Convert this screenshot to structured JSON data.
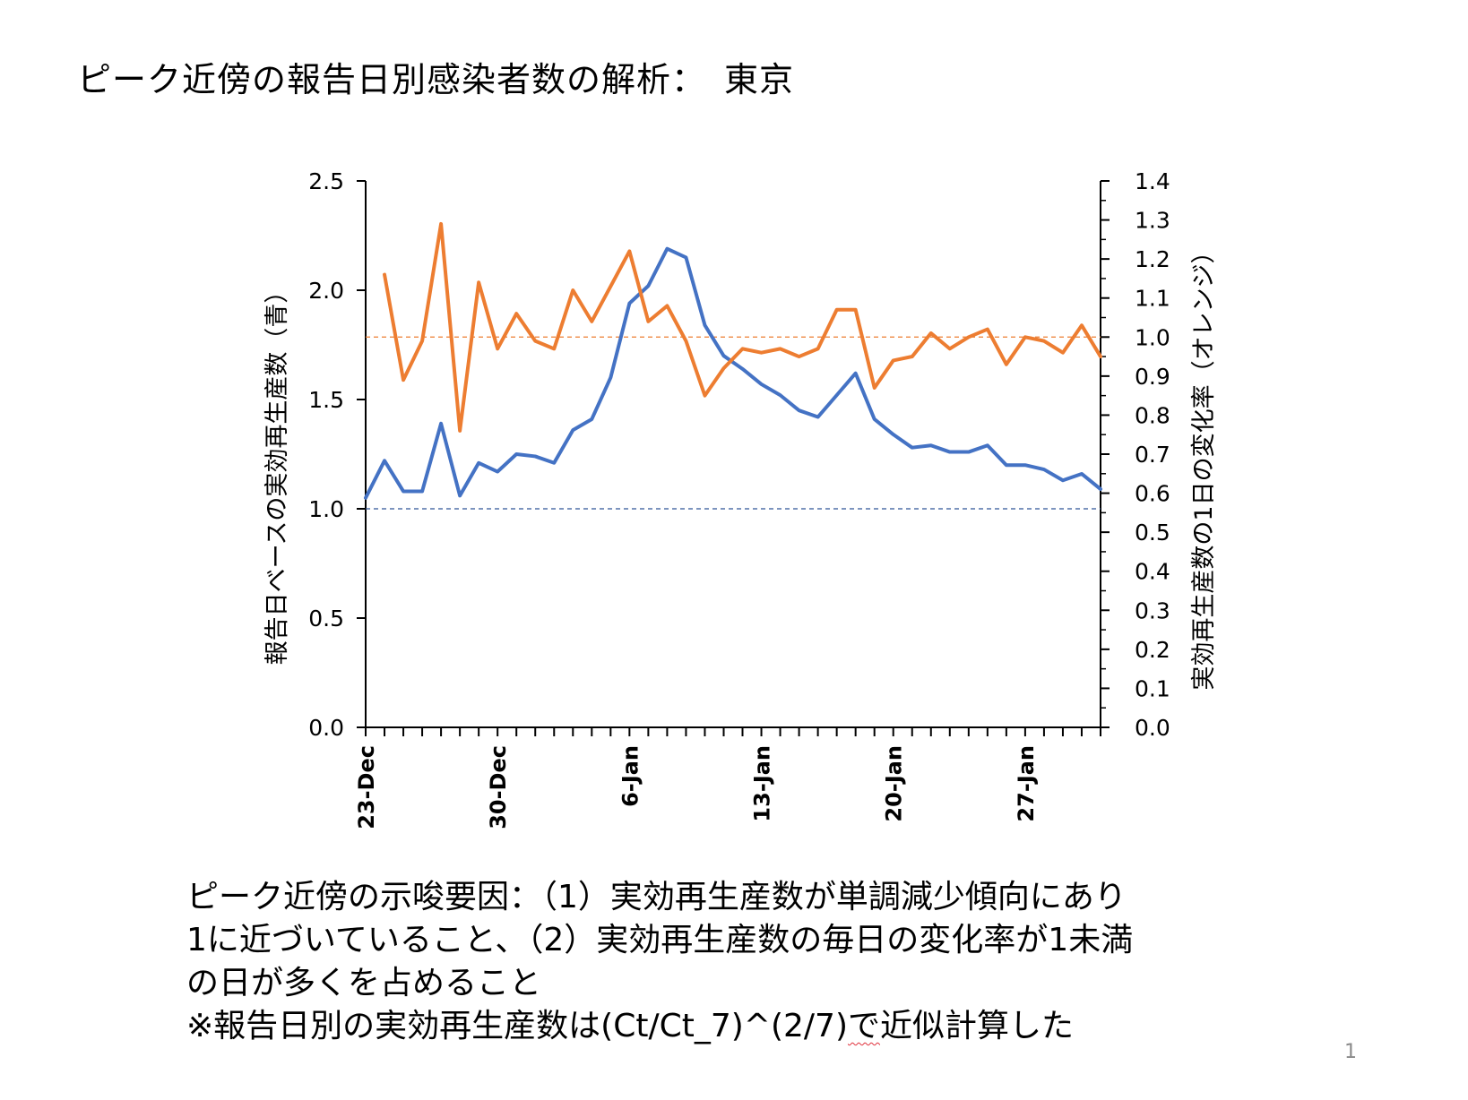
{
  "slide": {
    "title": "ピーク近傍の報告日別感染者数の解析：　東京",
    "notes": [
      "ピーク近傍の示唆要因：（1）実効再生産数が単調減少傾向にあり",
      "1に近づいていること、（2）実効再生産数の毎日の変化率が1未満",
      "の日が多くを占めること"
    ],
    "formula_prefix": "※報告日別の実効再生産数は(Ct/Ct_7)^(2/7)",
    "formula_underlined": "で",
    "formula_suffix": "近似計算した",
    "page_number": "1"
  },
  "chart_data": {
    "type": "line",
    "x_tick_labels": [
      "23-Dec",
      "30-Dec",
      "6-Jan",
      "13-Jan",
      "20-Jan",
      "27-Jan"
    ],
    "x_tick_indices": [
      0,
      7,
      14,
      21,
      28,
      35
    ],
    "n_days": 40,
    "y_left": {
      "label": "報告日ベースの実効再生産数（青）",
      "lim": [
        0,
        2.5
      ],
      "ticks": [
        "0.0",
        "0.5",
        "1.0",
        "1.5",
        "2.0",
        "2.5"
      ]
    },
    "y_right": {
      "label": "実効再生産数の1日の変化率（オレンジ）",
      "lim": [
        0,
        1.4
      ],
      "ticks": [
        "0.0",
        "0.1",
        "0.2",
        "0.3",
        "0.4",
        "0.5",
        "0.6",
        "0.7",
        "0.8",
        "0.9",
        "1.0",
        "1.1",
        "1.2",
        "1.3",
        "1.4"
      ]
    },
    "series": [
      {
        "name": "実効再生産数（青）",
        "axis": "left",
        "color": "#4472c4",
        "values": [
          1.05,
          1.22,
          1.08,
          1.08,
          1.39,
          1.06,
          1.21,
          1.17,
          1.25,
          1.24,
          1.21,
          1.36,
          1.41,
          1.6,
          1.94,
          2.02,
          2.19,
          2.15,
          1.84,
          1.7,
          1.64,
          1.57,
          1.52,
          1.45,
          1.42,
          1.52,
          1.62,
          1.41,
          1.34,
          1.28,
          1.29,
          1.26,
          1.26,
          1.29,
          1.2,
          1.2,
          1.18,
          1.13,
          1.16,
          1.09
        ]
      },
      {
        "name": "1日の変化率（オレンジ）",
        "axis": "right",
        "color": "#ed7d31",
        "x_start": 1,
        "values": [
          1.16,
          0.89,
          0.99,
          1.29,
          0.76,
          1.14,
          0.97,
          1.06,
          0.99,
          0.97,
          1.12,
          1.04,
          1.13,
          1.22,
          1.04,
          1.08,
          0.99,
          0.85,
          0.92,
          0.97,
          0.96,
          0.97,
          0.95,
          0.97,
          1.07,
          1.07,
          0.87,
          0.94,
          0.95,
          1.01,
          0.97,
          1.0,
          1.02,
          0.93,
          1.0,
          0.99,
          0.96,
          1.03,
          0.95
        ]
      }
    ],
    "reference_lines": [
      {
        "axis": "left",
        "value": 1.0,
        "color": "#2f5597",
        "style": "dashed"
      },
      {
        "axis": "right",
        "value": 1.0,
        "color": "#ed7d31",
        "style": "dashed"
      }
    ]
  }
}
